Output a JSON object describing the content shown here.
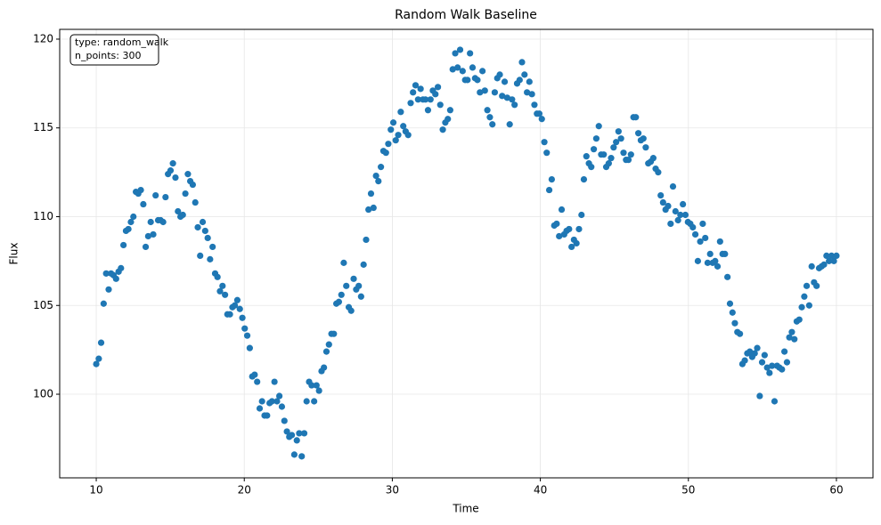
{
  "chart_data": {
    "type": "scatter",
    "title": "Random Walk Baseline",
    "xlabel": "Time",
    "ylabel": "Flux",
    "annotation": [
      "type: random_walk",
      "n_points: 300"
    ],
    "color": "#1f77b4",
    "grid": true,
    "xlim": [
      7.53,
      62.47
    ],
    "ylim": [
      95.29,
      120.55
    ],
    "xticks": [
      10,
      20,
      30,
      40,
      50,
      60
    ],
    "yticks": [
      100,
      105,
      110,
      115,
      120
    ],
    "x": [
      10.0,
      10.17,
      10.33,
      10.5,
      10.67,
      10.84,
      11.0,
      11.17,
      11.34,
      11.51,
      11.67,
      11.84,
      12.01,
      12.17,
      12.34,
      12.51,
      12.68,
      12.84,
      13.01,
      13.18,
      13.34,
      13.51,
      13.68,
      13.85,
      14.01,
      14.18,
      14.35,
      14.52,
      14.68,
      14.85,
      15.02,
      15.18,
      15.35,
      15.52,
      15.69,
      15.85,
      16.02,
      16.19,
      16.35,
      16.52,
      16.69,
      16.86,
      17.02,
      17.19,
      17.36,
      17.53,
      17.69,
      17.86,
      18.03,
      18.19,
      18.36,
      18.53,
      18.7,
      18.86,
      19.03,
      19.2,
      19.36,
      19.53,
      19.7,
      19.87,
      20.03,
      20.2,
      20.37,
      20.54,
      20.7,
      20.87,
      21.04,
      21.2,
      21.37,
      21.54,
      21.71,
      21.87,
      22.04,
      22.21,
      22.37,
      22.54,
      22.71,
      22.88,
      23.04,
      23.21,
      23.38,
      23.55,
      23.71,
      23.88,
      24.05,
      24.21,
      24.38,
      24.55,
      24.72,
      24.88,
      25.05,
      25.22,
      25.38,
      25.55,
      25.72,
      25.89,
      26.05,
      26.22,
      26.39,
      26.56,
      26.72,
      26.89,
      27.06,
      27.22,
      27.39,
      27.56,
      27.73,
      27.89,
      28.06,
      28.23,
      28.39,
      28.56,
      28.73,
      28.9,
      29.06,
      29.23,
      29.4,
      29.57,
      29.73,
      29.9,
      30.07,
      30.23,
      30.4,
      30.57,
      30.74,
      30.9,
      31.07,
      31.24,
      31.4,
      31.57,
      31.74,
      31.91,
      32.07,
      32.24,
      32.41,
      32.58,
      32.74,
      32.91,
      33.08,
      33.24,
      33.41,
      33.58,
      33.75,
      33.91,
      34.08,
      34.25,
      34.41,
      34.58,
      34.75,
      34.92,
      35.08,
      35.25,
      35.42,
      35.59,
      35.75,
      35.92,
      36.09,
      36.25,
      36.42,
      36.59,
      36.76,
      36.92,
      37.09,
      37.26,
      37.42,
      37.59,
      37.76,
      37.93,
      38.09,
      38.26,
      38.43,
      38.6,
      38.76,
      38.93,
      39.1,
      39.26,
      39.43,
      39.6,
      39.77,
      39.93,
      40.1,
      40.27,
      40.43,
      40.6,
      40.77,
      40.94,
      41.1,
      41.27,
      41.44,
      41.61,
      41.77,
      41.94,
      42.11,
      42.27,
      42.44,
      42.61,
      42.78,
      42.94,
      43.11,
      43.28,
      43.44,
      43.61,
      43.78,
      43.95,
      44.11,
      44.28,
      44.45,
      44.62,
      44.78,
      44.95,
      45.12,
      45.28,
      45.45,
      45.62,
      45.79,
      45.95,
      46.12,
      46.29,
      46.45,
      46.62,
      46.79,
      46.96,
      47.12,
      47.29,
      47.46,
      47.63,
      47.79,
      47.96,
      48.13,
      48.29,
      48.46,
      48.63,
      48.8,
      48.96,
      49.13,
      49.3,
      49.46,
      49.63,
      49.8,
      49.97,
      50.13,
      50.3,
      50.47,
      50.64,
      50.8,
      50.97,
      51.14,
      51.3,
      51.47,
      51.64,
      51.81,
      51.97,
      52.14,
      52.31,
      52.47,
      52.64,
      52.81,
      52.98,
      53.14,
      53.31,
      53.48,
      53.65,
      53.81,
      53.98,
      54.15,
      54.31,
      54.48,
      54.65,
      54.82,
      54.98,
      55.15,
      55.32,
      55.48,
      55.65,
      55.82,
      55.99,
      56.15,
      56.32,
      56.49,
      56.66,
      56.82,
      56.99,
      57.16,
      57.32,
      57.49,
      57.66,
      57.83,
      57.99,
      58.16,
      58.33,
      58.49,
      58.66,
      58.83,
      59.0,
      59.16,
      59.33,
      59.5,
      59.67,
      59.83,
      60.0
    ],
    "values": [
      101.7,
      102.0,
      102.9,
      105.1,
      106.8,
      105.9,
      106.8,
      106.7,
      106.5,
      106.9,
      107.1,
      108.4,
      109.2,
      109.3,
      109.7,
      110.0,
      111.4,
      111.3,
      111.5,
      110.7,
      108.3,
      108.9,
      109.7,
      109.0,
      111.2,
      109.8,
      109.8,
      109.7,
      111.1,
      112.4,
      112.6,
      113.0,
      112.2,
      110.3,
      110.0,
      110.1,
      111.3,
      112.4,
      112.0,
      111.8,
      110.8,
      109.4,
      107.8,
      109.7,
      109.2,
      108.8,
      107.6,
      108.3,
      106.8,
      106.6,
      105.8,
      106.1,
      105.6,
      104.5,
      104.5,
      104.9,
      105.0,
      105.3,
      104.8,
      104.3,
      103.7,
      103.3,
      102.6,
      101.0,
      101.1,
      100.7,
      99.2,
      99.6,
      98.8,
      98.8,
      99.5,
      99.6,
      100.7,
      99.6,
      99.9,
      99.3,
      98.5,
      97.9,
      97.6,
      97.7,
      96.6,
      97.4,
      97.8,
      96.5,
      97.8,
      99.6,
      100.7,
      100.5,
      99.6,
      100.5,
      100.2,
      101.3,
      101.5,
      102.4,
      102.8,
      103.4,
      103.4,
      105.1,
      105.2,
      105.6,
      107.4,
      106.1,
      104.9,
      104.7,
      106.5,
      105.9,
      106.1,
      105.5,
      107.3,
      108.7,
      110.4,
      111.3,
      110.5,
      112.3,
      112.0,
      112.8,
      113.7,
      113.6,
      114.1,
      114.9,
      115.3,
      114.3,
      114.6,
      115.9,
      115.1,
      114.8,
      114.6,
      116.4,
      117.0,
      117.4,
      116.6,
      117.2,
      116.6,
      116.6,
      116.0,
      116.6,
      117.1,
      116.9,
      117.3,
      116.3,
      114.9,
      115.3,
      115.5,
      116.0,
      118.3,
      119.2,
      118.4,
      119.4,
      118.2,
      117.7,
      117.7,
      119.2,
      118.4,
      117.8,
      117.7,
      117.0,
      118.2,
      117.1,
      116.0,
      115.6,
      115.2,
      117.0,
      117.8,
      118.0,
      116.8,
      117.6,
      116.7,
      115.2,
      116.6,
      116.3,
      117.5,
      117.7,
      118.7,
      118.0,
      117.0,
      117.6,
      116.9,
      116.3,
      115.8,
      115.8,
      115.5,
      114.2,
      113.6,
      111.5,
      112.1,
      109.5,
      109.6,
      108.9,
      110.4,
      109.0,
      109.2,
      109.3,
      108.3,
      108.7,
      108.5,
      109.3,
      110.1,
      112.1,
      113.4,
      113.0,
      112.8,
      113.8,
      114.4,
      115.1,
      113.5,
      113.5,
      112.8,
      113.0,
      113.3,
      113.9,
      114.2,
      114.8,
      114.4,
      113.6,
      113.2,
      113.2,
      113.5,
      115.6,
      115.6,
      114.7,
      114.3,
      114.4,
      113.9,
      113.0,
      113.1,
      113.3,
      112.7,
      112.5,
      111.2,
      110.8,
      110.4,
      110.6,
      109.6,
      111.7,
      110.3,
      109.8,
      110.1,
      110.7,
      110.1,
      109.7,
      109.6,
      109.4,
      109.0,
      107.5,
      108.6,
      109.6,
      108.8,
      107.4,
      107.9,
      107.4,
      107.5,
      107.2,
      108.6,
      107.9,
      107.9,
      106.6,
      105.1,
      104.6,
      104.0,
      103.5,
      103.4,
      101.7,
      101.9,
      102.3,
      102.4,
      102.1,
      102.3,
      102.6,
      99.9,
      101.8,
      102.2,
      101.5,
      101.2,
      101.6,
      99.6,
      101.6,
      101.5,
      101.4,
      102.4,
      101.8,
      103.2,
      103.5,
      103.1,
      104.1,
      104.2,
      104.9,
      105.5,
      106.1,
      105.0,
      107.2,
      106.3,
      106.1,
      107.1,
      107.2,
      107.3,
      107.8,
      107.5,
      107.8,
      107.5,
      107.8
    ]
  }
}
